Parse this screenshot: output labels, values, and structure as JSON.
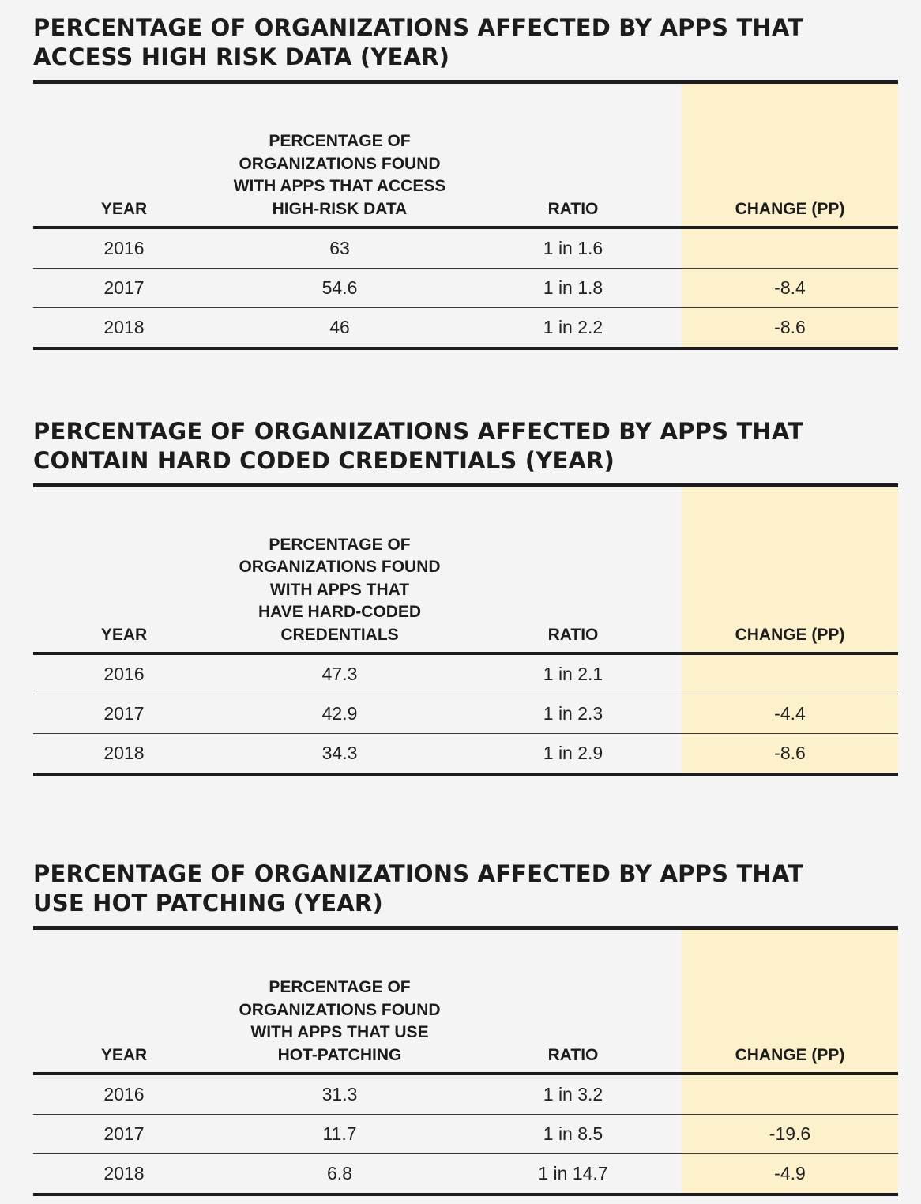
{
  "sections": [
    {
      "title_line1": "PERCENTAGE OF ORGANIZATIONS AFFECTED BY APPS THAT",
      "title_line2": "ACCESS HIGH RISK DATA (YEAR)",
      "headers": {
        "year": "YEAR",
        "percentage": [
          "PERCENTAGE OF",
          "ORGANIZATIONS FOUND",
          "WITH APPS THAT ACCESS",
          "HIGH-RISK DATA"
        ],
        "ratio": "RATIO",
        "change": "CHANGE (PP)"
      },
      "rows": [
        {
          "year": "2016",
          "percentage": "63",
          "ratio": "1 in 1.6",
          "change": ""
        },
        {
          "year": "2017",
          "percentage": "54.6",
          "ratio": "1 in 1.8",
          "change": "-8.4"
        },
        {
          "year": "2018",
          "percentage": "46",
          "ratio": "1 in 2.2",
          "change": "-8.6"
        }
      ]
    },
    {
      "title_line1": "PERCENTAGE OF ORGANIZATIONS AFFECTED BY APPS THAT",
      "title_line2": "CONTAIN HARD CODED CREDENTIALS (YEAR)",
      "headers": {
        "year": "YEAR",
        "percentage": [
          "PERCENTAGE OF",
          "ORGANIZATIONS FOUND",
          "WITH APPS THAT",
          "HAVE HARD-CODED",
          "CREDENTIALS"
        ],
        "ratio": "RATIO",
        "change": "CHANGE (PP)"
      },
      "rows": [
        {
          "year": "2016",
          "percentage": "47.3",
          "ratio": "1 in 2.1",
          "change": ""
        },
        {
          "year": "2017",
          "percentage": "42.9",
          "ratio": "1 in 2.3",
          "change": "-4.4"
        },
        {
          "year": "2018",
          "percentage": "34.3",
          "ratio": "1 in 2.9",
          "change": "-8.6"
        }
      ]
    },
    {
      "title_line1": "PERCENTAGE OF ORGANIZATIONS AFFECTED BY APPS THAT",
      "title_line2": "USE HOT PATCHING (YEAR)",
      "headers": {
        "year": "YEAR",
        "percentage": [
          "PERCENTAGE OF",
          "ORGANIZATIONS FOUND",
          "WITH APPS THAT USE",
          "HOT-PATCHING"
        ],
        "ratio": "RATIO",
        "change": "CHANGE (PP)"
      },
      "rows": [
        {
          "year": "2016",
          "percentage": "31.3",
          "ratio": "1 in 3.2",
          "change": ""
        },
        {
          "year": "2017",
          "percentage": "11.7",
          "ratio": "1 in 8.5",
          "change": "-19.6"
        },
        {
          "year": "2018",
          "percentage": "6.8",
          "ratio": "1 in 14.7",
          "change": "-4.9"
        }
      ]
    }
  ],
  "colors": {
    "background": "#f4f4f4",
    "highlight": "#fdf1cc",
    "rule": "#1c1c1c"
  }
}
